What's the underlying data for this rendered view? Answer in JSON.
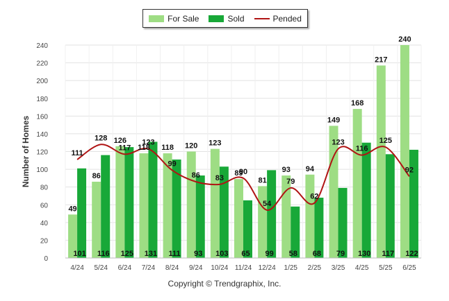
{
  "legend": {
    "for_sale": "For Sale",
    "sold": "Sold",
    "pended": "Pended"
  },
  "copyright": "Copyright © Trendgraphix, Inc.",
  "colors": {
    "for_sale": "#9edd84",
    "sold": "#18a838",
    "pended": "#b01414"
  },
  "chart_data": {
    "type": "bar",
    "ylabel": "Number of Homes",
    "ylim": [
      0,
      240
    ],
    "yticks": [
      0,
      20,
      40,
      60,
      80,
      100,
      120,
      140,
      160,
      180,
      200,
      220,
      240
    ],
    "grid": true,
    "legend_position": "top",
    "categories": [
      "4/24",
      "5/24",
      "6/24",
      "7/24",
      "8/24",
      "9/24",
      "10/24",
      "11/24",
      "12/24",
      "1/25",
      "2/25",
      "3/25",
      "4/25",
      "5/25",
      "6/25"
    ],
    "series": [
      {
        "name": "For Sale",
        "type": "bar",
        "values": [
          49,
          86,
          126,
          118,
          118,
          120,
          123,
          89,
          81,
          93,
          94,
          149,
          168,
          217,
          240
        ]
      },
      {
        "name": "Sold",
        "type": "bar",
        "values": [
          101,
          116,
          125,
          131,
          111,
          93,
          103,
          65,
          99,
          58,
          68,
          79,
          130,
          117,
          122
        ]
      },
      {
        "name": "Pended",
        "type": "line",
        "values": [
          111,
          128,
          117,
          123,
          99,
          86,
          83,
          90,
          54,
          79,
          62,
          123,
          116,
          125,
          92
        ]
      }
    ]
  }
}
